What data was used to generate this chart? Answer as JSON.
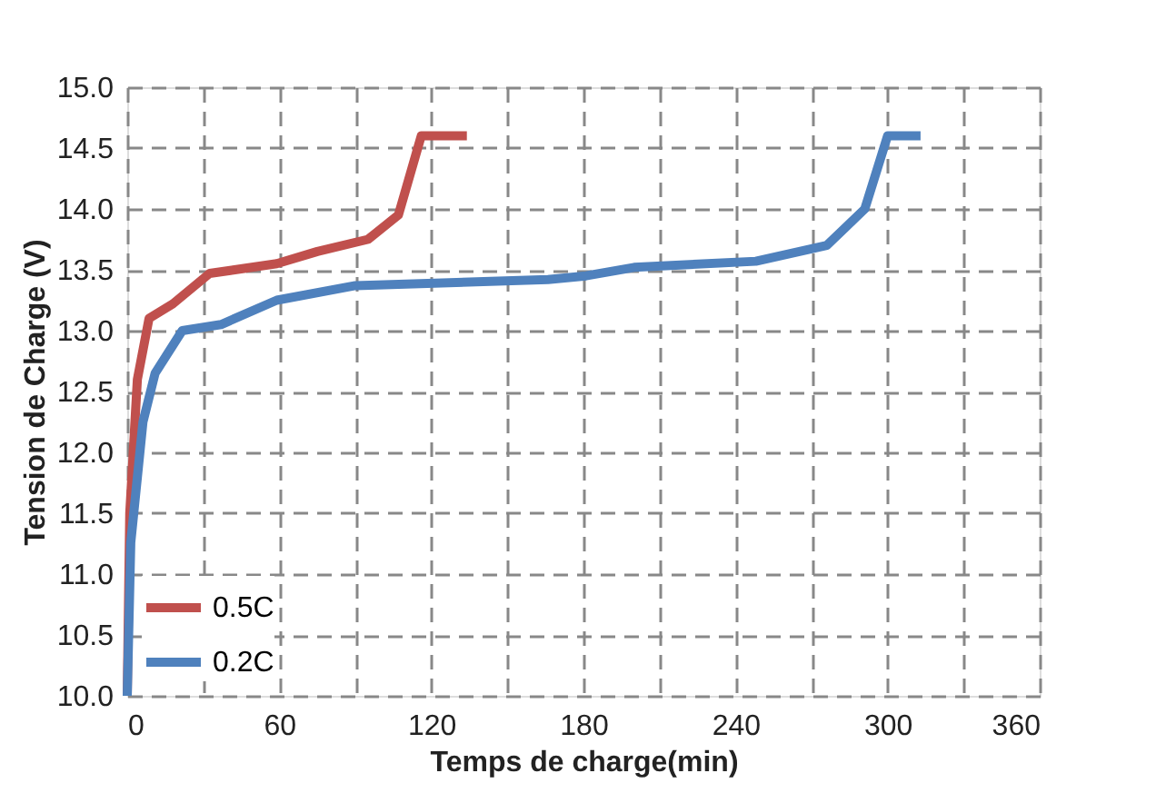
{
  "chart_data": {
    "type": "line",
    "xlabel": "Temps de charge(min)",
    "ylabel": "Tension de Charge (V)",
    "xlim": [
      0,
      360
    ],
    "ylim": [
      10,
      15
    ],
    "xticks": [
      0,
      {
        "value": 30,
        "label": null
      },
      60,
      {
        "value": 90,
        "label": null
      },
      120,
      {
        "value": 150,
        "label": null
      },
      180,
      {
        "value": 210,
        "label": null
      },
      240,
      {
        "value": 270,
        "label": null
      },
      300,
      {
        "value": 330,
        "label": null
      },
      360
    ],
    "yticks": [
      {
        "value": 10,
        "label": "10.0"
      },
      10.5,
      {
        "value": 11,
        "label": "11.0"
      },
      11.5,
      {
        "value": 12,
        "label": "12.0"
      },
      12.5,
      {
        "value": 13,
        "label": "13.0"
      },
      13.5,
      {
        "value": 14,
        "label": "14.0"
      },
      14.5,
      {
        "value": 15,
        "label": "15.0"
      }
    ],
    "grid": true,
    "line_style": "solid",
    "marker": "none",
    "legend": "bottom left",
    "series": [
      {
        "name": "0.5C",
        "color": "#c0504d",
        "x": [
          0,
          1,
          4,
          8.6,
          18,
          32.5,
          59,
          75,
          95,
          107,
          116,
          134
        ],
        "values": [
          10.0,
          11.5,
          12.6,
          13.1,
          13.22,
          13.47,
          13.55,
          13.65,
          13.75,
          13.95,
          14.6,
          14.6
        ]
      },
      {
        "name": "0.2C",
        "color": "#4f81bd",
        "x": [
          0,
          1.4,
          6.2,
          11,
          21.7,
          37,
          59,
          90,
          166,
          181,
          200,
          248,
          276,
          291,
          300,
          313
        ],
        "values": [
          10.0,
          11.26,
          12.25,
          12.65,
          13.0,
          13.05,
          13.25,
          13.37,
          13.42,
          13.45,
          13.52,
          13.57,
          13.7,
          14.0,
          14.6,
          14.6
        ]
      }
    ]
  }
}
